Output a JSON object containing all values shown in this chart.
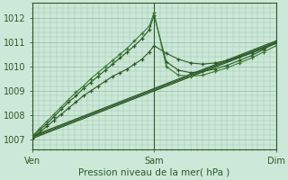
{
  "bg_color": "#cce8d8",
  "grid_color": "#99c4aa",
  "line_color_dark": "#2d5a27",
  "line_color_med": "#3a7a30",
  "xlabel": "Pression niveau de la mer( hPa )",
  "xlabel_color": "#2d5a27",
  "xtick_labels": [
    "Ven",
    "Sam",
    "Dim"
  ],
  "xtick_positions": [
    0.0,
    0.5,
    1.0
  ],
  "ytick_labels": [
    "1007",
    "1008",
    "1009",
    "1010",
    "1011",
    "1012"
  ],
  "ylim": [
    1006.6,
    1012.6
  ],
  "xlim": [
    0.0,
    1.0
  ],
  "trend1_x": [
    0.0,
    1.0
  ],
  "trend1_y": [
    1007.05,
    1010.95
  ],
  "trend2_x": [
    0.0,
    1.0
  ],
  "trend2_y": [
    1007.1,
    1011.0
  ],
  "trend3_x": [
    0.0,
    1.0
  ],
  "trend3_y": [
    1007.15,
    1011.05
  ],
  "s1_x": [
    0.0,
    0.03,
    0.06,
    0.09,
    0.12,
    0.15,
    0.18,
    0.21,
    0.24,
    0.27,
    0.3,
    0.33,
    0.36,
    0.39,
    0.42,
    0.45,
    0.48,
    0.5,
    0.55,
    0.6,
    0.65,
    0.7,
    0.75,
    0.8,
    0.85,
    0.9,
    0.95,
    1.0
  ],
  "s1_y": [
    1007.05,
    1007.3,
    1007.55,
    1007.8,
    1008.05,
    1008.3,
    1008.55,
    1008.8,
    1009.0,
    1009.2,
    1009.4,
    1009.6,
    1009.75,
    1009.9,
    1010.1,
    1010.3,
    1010.6,
    1010.85,
    1010.55,
    1010.3,
    1010.15,
    1010.1,
    1010.15,
    1010.25,
    1010.4,
    1010.55,
    1010.75,
    1010.95
  ],
  "s2_x": [
    0.0,
    0.03,
    0.06,
    0.09,
    0.12,
    0.15,
    0.18,
    0.21,
    0.24,
    0.27,
    0.3,
    0.33,
    0.36,
    0.39,
    0.42,
    0.45,
    0.48,
    0.5,
    0.55,
    0.6,
    0.65,
    0.7,
    0.75,
    0.8,
    0.85,
    0.9,
    0.95,
    1.0
  ],
  "s2_y": [
    1007.1,
    1007.4,
    1007.65,
    1007.95,
    1008.25,
    1008.55,
    1008.8,
    1009.1,
    1009.35,
    1009.6,
    1009.85,
    1010.1,
    1010.35,
    1010.6,
    1010.85,
    1011.15,
    1011.5,
    1012.1,
    1010.2,
    1009.85,
    1009.75,
    1009.8,
    1009.9,
    1010.05,
    1010.25,
    1010.45,
    1010.7,
    1011.0
  ],
  "s3_x": [
    0.0,
    0.03,
    0.06,
    0.09,
    0.12,
    0.15,
    0.18,
    0.21,
    0.24,
    0.27,
    0.3,
    0.33,
    0.36,
    0.39,
    0.42,
    0.45,
    0.48,
    0.5,
    0.55,
    0.6,
    0.65,
    0.7,
    0.75,
    0.8,
    0.85,
    0.9,
    0.95,
    1.0
  ],
  "s3_y": [
    1007.15,
    1007.45,
    1007.75,
    1008.05,
    1008.35,
    1008.65,
    1008.95,
    1009.2,
    1009.5,
    1009.75,
    1010.0,
    1010.25,
    1010.5,
    1010.75,
    1011.05,
    1011.35,
    1011.65,
    1012.2,
    1010.0,
    1009.65,
    1009.6,
    1009.65,
    1009.8,
    1009.95,
    1010.15,
    1010.35,
    1010.6,
    1010.85
  ],
  "vline_positions": [
    0.0,
    0.5,
    1.0
  ]
}
